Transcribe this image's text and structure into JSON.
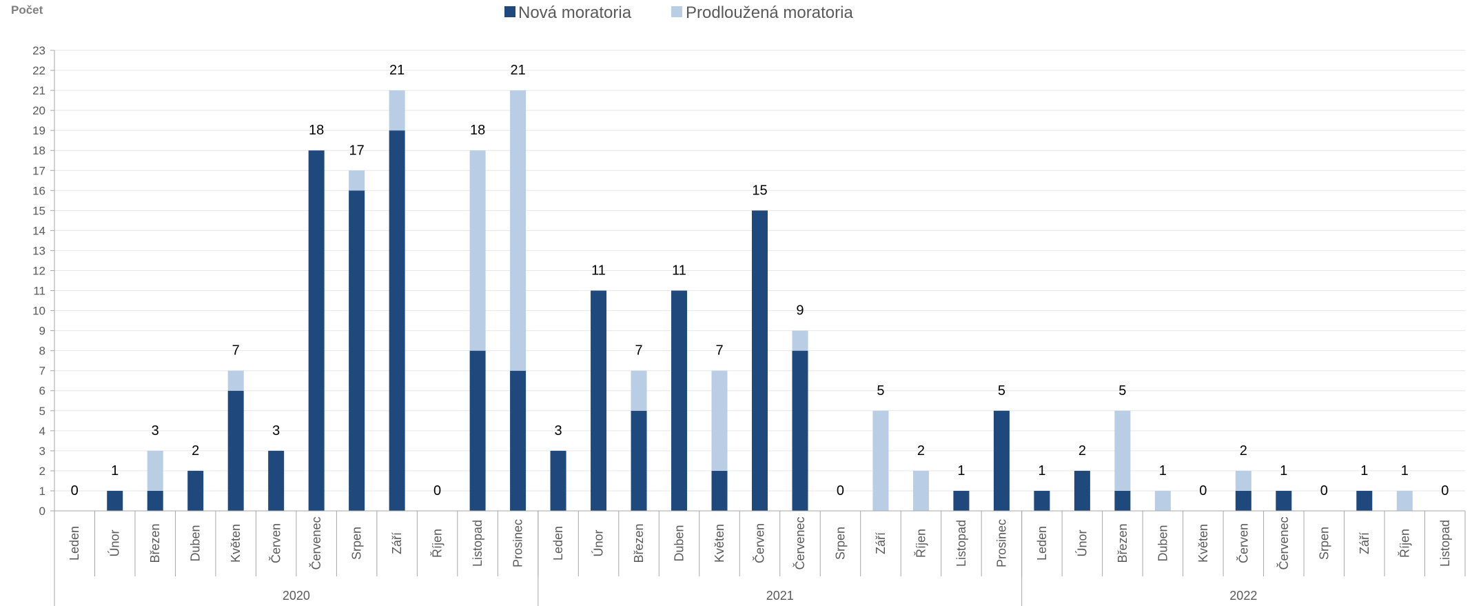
{
  "chart_data": {
    "type": "bar",
    "stacked": true,
    "title": "",
    "ylabel": "Počet",
    "xlabel": "",
    "ylim": [
      0,
      23
    ],
    "yticks": [
      0,
      1,
      2,
      3,
      4,
      5,
      6,
      7,
      8,
      9,
      10,
      11,
      12,
      13,
      14,
      15,
      16,
      17,
      18,
      19,
      20,
      21,
      22,
      23
    ],
    "grid": true,
    "legend_position": "top-center",
    "categories": [
      "Leden",
      "Únor",
      "Březen",
      "Duben",
      "Květen",
      "Červen",
      "Červenec",
      "Srpen",
      "Září",
      "Říjen",
      "Listopad",
      "Prosinec",
      "Leden",
      "Únor",
      "Březen",
      "Duben",
      "Květen",
      "Červen",
      "Červenec",
      "Srpen",
      "Září",
      "Říjen",
      "Listopad",
      "Prosinec",
      "Leden",
      "Únor",
      "Březen",
      "Duben",
      "Květen",
      "Červen",
      "Červenec",
      "Srpen",
      "Září",
      "Říjen",
      "Listopad"
    ],
    "groups": [
      {
        "label": "2020",
        "count": 12
      },
      {
        "label": "2021",
        "count": 12
      },
      {
        "label": "2022",
        "count": 11
      }
    ],
    "series": [
      {
        "name": "Nová moratoria",
        "color": "#1f497d",
        "values": [
          0,
          1,
          1,
          2,
          6,
          3,
          18,
          16,
          19,
          0,
          8,
          7,
          3,
          11,
          5,
          11,
          2,
          15,
          8,
          0,
          0,
          0,
          1,
          5,
          1,
          2,
          1,
          0,
          0,
          1,
          1,
          0,
          1,
          0,
          0
        ]
      },
      {
        "name": "Prodloužená moratoria",
        "color": "#b9cde5",
        "values": [
          0,
          0,
          2,
          0,
          1,
          0,
          0,
          1,
          2,
          0,
          10,
          14,
          0,
          0,
          2,
          0,
          5,
          0,
          1,
          0,
          5,
          2,
          0,
          0,
          0,
          0,
          4,
          1,
          0,
          1,
          0,
          0,
          0,
          1,
          0
        ]
      }
    ],
    "totals": [
      0,
      1,
      3,
      2,
      7,
      3,
      18,
      17,
      21,
      0,
      18,
      21,
      3,
      11,
      7,
      11,
      7,
      15,
      9,
      0,
      5,
      2,
      1,
      5,
      1,
      2,
      5,
      1,
      0,
      2,
      1,
      0,
      1,
      1,
      0
    ]
  },
  "colors": {
    "grid": "#e6e6e6",
    "axis": "#a6a6a6",
    "text": "#595959"
  }
}
